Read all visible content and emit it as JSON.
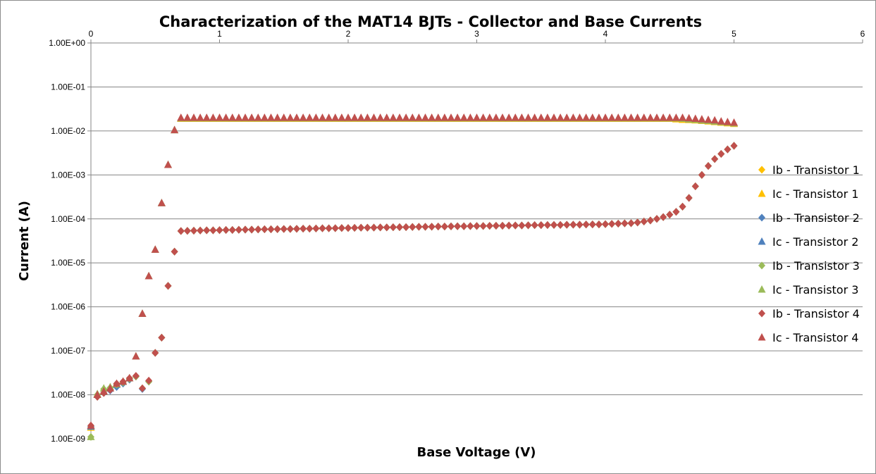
{
  "chart_data": {
    "type": "scatter",
    "title": "Characterization of the MAT14 BJTs - Collector and Base Currents",
    "xlabel": "Base Voltage (V)",
    "ylabel": "Current (A)",
    "xlim": [
      0,
      6
    ],
    "ylim": [
      1e-09,
      1
    ],
    "yscale": "log",
    "grid": "horizontal major gridlines",
    "legend_position": "right",
    "x_ticks": [
      "0",
      "1",
      "2",
      "3",
      "4",
      "5",
      "6"
    ],
    "y_ticks": [
      "1.00E-09",
      "1.00E-08",
      "1.00E-07",
      "1.00E-06",
      "1.00E-05",
      "1.00E-04",
      "1.00E-03",
      "1.00E-02",
      "1.00E-01",
      "1.00E+00"
    ],
    "x": [
      0.0,
      0.05,
      0.1,
      0.15,
      0.2,
      0.25,
      0.3,
      0.35,
      0.4,
      0.45,
      0.5,
      0.55,
      0.6,
      0.65,
      0.7,
      0.75,
      0.8,
      0.85,
      0.9,
      0.95,
      1.0,
      1.05,
      1.1,
      1.15,
      1.2,
      1.25,
      1.3,
      1.35,
      1.4,
      1.45,
      1.5,
      1.55,
      1.6,
      1.65,
      1.7,
      1.75,
      1.8,
      1.85,
      1.9,
      1.95,
      2.0,
      2.05,
      2.1,
      2.15,
      2.2,
      2.25,
      2.3,
      2.35,
      2.4,
      2.45,
      2.5,
      2.55,
      2.6,
      2.65,
      2.7,
      2.75,
      2.8,
      2.85,
      2.9,
      2.95,
      3.0,
      3.05,
      3.1,
      3.15,
      3.2,
      3.25,
      3.3,
      3.35,
      3.4,
      3.45,
      3.5,
      3.55,
      3.6,
      3.65,
      3.7,
      3.75,
      3.8,
      3.85,
      3.9,
      3.95,
      4.0,
      4.05,
      4.1,
      4.15,
      4.2,
      4.25,
      4.3,
      4.35,
      4.4,
      4.45,
      4.5,
      4.55,
      4.6,
      4.65,
      4.7,
      4.75,
      4.8,
      4.85,
      4.9,
      4.95,
      5.0
    ],
    "series": [
      {
        "name": "Ib - Transistor 1",
        "marker": "diamond",
        "color": "#ffc000",
        "values": [
          1.8e-09,
          9e-09,
          1.1e-08,
          1.3e-08,
          1.6e-08,
          1.9e-08,
          2.3e-08,
          2.6e-08,
          1.4e-08,
          2e-08,
          9e-08,
          2e-07,
          3e-06,
          1.8e-05,
          5.3e-05,
          5.35e-05,
          5.4e-05,
          5.45e-05,
          5.5e-05,
          5.5e-05,
          5.55e-05,
          5.6e-05,
          5.6e-05,
          5.65e-05,
          5.7e-05,
          5.7e-05,
          5.75e-05,
          5.8e-05,
          5.8e-05,
          5.85e-05,
          5.9e-05,
          5.9e-05,
          5.95e-05,
          6e-05,
          6e-05,
          6.05e-05,
          6.1e-05,
          6.1e-05,
          6.15e-05,
          6.2e-05,
          6.2e-05,
          6.25e-05,
          6.3e-05,
          6.3e-05,
          6.35e-05,
          6.4e-05,
          6.4e-05,
          6.45e-05,
          6.5e-05,
          6.5e-05,
          6.55e-05,
          6.6e-05,
          6.6e-05,
          6.65e-05,
          6.7e-05,
          6.7e-05,
          6.75e-05,
          6.8e-05,
          6.8e-05,
          6.85e-05,
          6.9e-05,
          6.9e-05,
          6.95e-05,
          7e-05,
          7e-05,
          7.05e-05,
          7.1e-05,
          7.1e-05,
          7.15e-05,
          7.2e-05,
          7.2e-05,
          7.25e-05,
          7.3e-05,
          7.3e-05,
          7.35e-05,
          7.4e-05,
          7.4e-05,
          7.45e-05,
          7.5e-05,
          7.5e-05,
          7.6e-05,
          7.7e-05,
          7.8e-05,
          7.9e-05,
          8e-05,
          8.3e-05,
          8.7e-05,
          9.2e-05,
          0.0001,
          0.00011,
          0.000125,
          0.000145,
          0.00019,
          0.0003,
          0.00055,
          0.001,
          0.0016,
          0.0023,
          0.003,
          0.0038,
          0.0046
        ]
      },
      {
        "name": "Ic - Transistor 1",
        "marker": "triangle",
        "color": "#ffc000",
        "values": [
          1.8e-09,
          1e-08,
          1.2e-08,
          1.4e-08,
          1.7e-08,
          2e-08,
          2.4e-08,
          7.5e-08,
          7e-07,
          5e-06,
          2e-05,
          0.00023,
          0.0017,
          0.0105,
          0.019,
          0.019,
          0.019,
          0.019,
          0.019,
          0.019,
          0.019,
          0.019,
          0.019,
          0.019,
          0.019,
          0.019,
          0.019,
          0.019,
          0.019,
          0.019,
          0.019,
          0.019,
          0.019,
          0.019,
          0.019,
          0.019,
          0.019,
          0.019,
          0.019,
          0.019,
          0.019,
          0.019,
          0.019,
          0.019,
          0.019,
          0.019,
          0.019,
          0.019,
          0.019,
          0.019,
          0.019,
          0.019,
          0.019,
          0.019,
          0.019,
          0.019,
          0.019,
          0.019,
          0.019,
          0.019,
          0.019,
          0.019,
          0.019,
          0.019,
          0.019,
          0.019,
          0.019,
          0.019,
          0.019,
          0.019,
          0.019,
          0.019,
          0.019,
          0.019,
          0.019,
          0.019,
          0.019,
          0.019,
          0.019,
          0.019,
          0.019,
          0.019,
          0.019,
          0.019,
          0.019,
          0.019,
          0.019,
          0.019,
          0.019,
          0.019,
          0.019,
          0.0185,
          0.018,
          0.0178,
          0.0175,
          0.017,
          0.0165,
          0.016,
          0.0155,
          0.015,
          0.0145
        ]
      },
      {
        "name": "Ib - Transistor 2",
        "marker": "diamond",
        "color": "#4f81bd",
        "values": [
          1.9e-09,
          9e-09,
          1.1e-08,
          1.25e-08,
          1.5e-08,
          1.8e-08,
          2.2e-08,
          2.6e-08,
          1.35e-08,
          2e-08,
          9e-08,
          2e-07,
          3e-06,
          1.8e-05,
          5.3e-05,
          5.35e-05,
          5.4e-05,
          5.45e-05,
          5.5e-05,
          5.5e-05,
          5.55e-05,
          5.6e-05,
          5.6e-05,
          5.65e-05,
          5.7e-05,
          5.7e-05,
          5.75e-05,
          5.8e-05,
          5.8e-05,
          5.85e-05,
          5.9e-05,
          5.9e-05,
          5.95e-05,
          6e-05,
          6e-05,
          6.05e-05,
          6.1e-05,
          6.1e-05,
          6.15e-05,
          6.2e-05,
          6.2e-05,
          6.25e-05,
          6.3e-05,
          6.3e-05,
          6.35e-05,
          6.4e-05,
          6.4e-05,
          6.45e-05,
          6.5e-05,
          6.5e-05,
          6.55e-05,
          6.6e-05,
          6.6e-05,
          6.65e-05,
          6.7e-05,
          6.7e-05,
          6.75e-05,
          6.8e-05,
          6.8e-05,
          6.85e-05,
          6.9e-05,
          6.9e-05,
          6.95e-05,
          7e-05,
          7e-05,
          7.05e-05,
          7.1e-05,
          7.1e-05,
          7.15e-05,
          7.2e-05,
          7.2e-05,
          7.25e-05,
          7.3e-05,
          7.3e-05,
          7.35e-05,
          7.4e-05,
          7.4e-05,
          7.45e-05,
          7.5e-05,
          7.5e-05,
          7.6e-05,
          7.7e-05,
          7.8e-05,
          7.9e-05,
          8e-05,
          8.3e-05,
          8.7e-05,
          9.2e-05,
          0.0001,
          0.00011,
          0.000125,
          0.000145,
          0.00019,
          0.0003,
          0.00055,
          0.001,
          0.0016,
          0.0023,
          0.003,
          0.0038,
          0.0046
        ]
      },
      {
        "name": "Ic - Transistor 2",
        "marker": "triangle",
        "color": "#4f81bd",
        "values": [
          1.9e-09,
          1e-08,
          1.2e-08,
          1.4e-08,
          1.7e-08,
          2e-08,
          2.4e-08,
          7.5e-08,
          7e-07,
          5e-06,
          2e-05,
          0.00023,
          0.0017,
          0.0105,
          0.0195,
          0.0195,
          0.0195,
          0.0195,
          0.0195,
          0.0195,
          0.0195,
          0.0195,
          0.0195,
          0.0195,
          0.0195,
          0.0195,
          0.0195,
          0.0195,
          0.0195,
          0.0195,
          0.0195,
          0.0195,
          0.0195,
          0.0195,
          0.0195,
          0.0195,
          0.0195,
          0.0195,
          0.0195,
          0.0195,
          0.0195,
          0.0195,
          0.0195,
          0.0195,
          0.0195,
          0.0195,
          0.0195,
          0.0195,
          0.0195,
          0.0195,
          0.0195,
          0.0195,
          0.0195,
          0.0195,
          0.0195,
          0.0195,
          0.0195,
          0.0195,
          0.0195,
          0.0195,
          0.0195,
          0.0195,
          0.0195,
          0.0195,
          0.0195,
          0.0195,
          0.0195,
          0.0195,
          0.0195,
          0.0195,
          0.0195,
          0.0195,
          0.0195,
          0.0195,
          0.0195,
          0.0195,
          0.0195,
          0.0195,
          0.0195,
          0.0195,
          0.0195,
          0.0195,
          0.0195,
          0.0195,
          0.0195,
          0.0195,
          0.0195,
          0.0195,
          0.0195,
          0.0195,
          0.0195,
          0.0195,
          0.019,
          0.0185,
          0.018,
          0.0175,
          0.017,
          0.0165,
          0.016,
          0.0155,
          0.015
        ]
      },
      {
        "name": "Ib - Transistor 3",
        "marker": "diamond",
        "color": "#9bbb59",
        "values": [
          1.1e-09,
          1e-08,
          1.35e-08,
          1.45e-08,
          1.7e-08,
          1.9e-08,
          2.3e-08,
          2.6e-08,
          1.4e-08,
          2e-08,
          9e-08,
          2e-07,
          3e-06,
          1.8e-05,
          5.3e-05,
          5.35e-05,
          5.4e-05,
          5.45e-05,
          5.5e-05,
          5.5e-05,
          5.55e-05,
          5.6e-05,
          5.6e-05,
          5.65e-05,
          5.7e-05,
          5.7e-05,
          5.75e-05,
          5.8e-05,
          5.8e-05,
          5.85e-05,
          5.9e-05,
          5.9e-05,
          5.95e-05,
          6e-05,
          6e-05,
          6.05e-05,
          6.1e-05,
          6.1e-05,
          6.15e-05,
          6.2e-05,
          6.2e-05,
          6.25e-05,
          6.3e-05,
          6.3e-05,
          6.35e-05,
          6.4e-05,
          6.4e-05,
          6.45e-05,
          6.5e-05,
          6.5e-05,
          6.55e-05,
          6.6e-05,
          6.6e-05,
          6.65e-05,
          6.7e-05,
          6.7e-05,
          6.75e-05,
          6.8e-05,
          6.8e-05,
          6.85e-05,
          6.9e-05,
          6.9e-05,
          6.95e-05,
          7e-05,
          7e-05,
          7.05e-05,
          7.1e-05,
          7.1e-05,
          7.15e-05,
          7.2e-05,
          7.2e-05,
          7.25e-05,
          7.3e-05,
          7.3e-05,
          7.35e-05,
          7.4e-05,
          7.4e-05,
          7.45e-05,
          7.5e-05,
          7.5e-05,
          7.6e-05,
          7.7e-05,
          7.8e-05,
          7.9e-05,
          8e-05,
          8.3e-05,
          8.7e-05,
          9.2e-05,
          0.0001,
          0.00011,
          0.000125,
          0.000145,
          0.00019,
          0.0003,
          0.00055,
          0.001,
          0.0016,
          0.0023,
          0.003,
          0.0038,
          0.0046
        ]
      },
      {
        "name": "Ic - Transistor 3",
        "marker": "triangle",
        "color": "#9bbb59",
        "values": [
          1.1e-09,
          1.05e-08,
          1.4e-08,
          1.5e-08,
          1.75e-08,
          2e-08,
          2.4e-08,
          7.5e-08,
          7e-07,
          5e-06,
          2e-05,
          0.00023,
          0.0017,
          0.0105,
          0.0195,
          0.0195,
          0.0195,
          0.0195,
          0.0195,
          0.0195,
          0.0195,
          0.0195,
          0.0195,
          0.0195,
          0.0195,
          0.0195,
          0.0195,
          0.0195,
          0.0195,
          0.0195,
          0.0195,
          0.0195,
          0.0195,
          0.0195,
          0.0195,
          0.0195,
          0.0195,
          0.0195,
          0.0195,
          0.0195,
          0.0195,
          0.0195,
          0.0195,
          0.0195,
          0.0195,
          0.0195,
          0.0195,
          0.0195,
          0.0195,
          0.0195,
          0.0195,
          0.0195,
          0.0195,
          0.0195,
          0.0195,
          0.0195,
          0.0195,
          0.0195,
          0.0195,
          0.0195,
          0.0195,
          0.0195,
          0.0195,
          0.0195,
          0.0195,
          0.0195,
          0.0195,
          0.0195,
          0.0195,
          0.0195,
          0.0195,
          0.0195,
          0.0195,
          0.0195,
          0.0195,
          0.0195,
          0.0195,
          0.0195,
          0.0195,
          0.0195,
          0.0195,
          0.0195,
          0.0195,
          0.0195,
          0.0195,
          0.0195,
          0.0195,
          0.0195,
          0.0195,
          0.0195,
          0.0195,
          0.0195,
          0.019,
          0.0185,
          0.018,
          0.0175,
          0.017,
          0.0165,
          0.016,
          0.0155,
          0.015
        ]
      },
      {
        "name": "Ib - Transistor 4",
        "marker": "diamond",
        "color": "#c0504d",
        "values": [
          2e-09,
          9e-09,
          1.1e-08,
          1.3e-08,
          1.8e-08,
          2e-08,
          2.4e-08,
          2.7e-08,
          1.4e-08,
          2.1e-08,
          9e-08,
          2e-07,
          3e-06,
          1.8e-05,
          5.3e-05,
          5.35e-05,
          5.4e-05,
          5.45e-05,
          5.5e-05,
          5.5e-05,
          5.55e-05,
          5.6e-05,
          5.6e-05,
          5.65e-05,
          5.7e-05,
          5.7e-05,
          5.75e-05,
          5.8e-05,
          5.8e-05,
          5.85e-05,
          5.9e-05,
          5.9e-05,
          5.95e-05,
          6e-05,
          6e-05,
          6.05e-05,
          6.1e-05,
          6.1e-05,
          6.15e-05,
          6.2e-05,
          6.2e-05,
          6.25e-05,
          6.3e-05,
          6.3e-05,
          6.35e-05,
          6.4e-05,
          6.4e-05,
          6.45e-05,
          6.5e-05,
          6.5e-05,
          6.55e-05,
          6.6e-05,
          6.6e-05,
          6.65e-05,
          6.7e-05,
          6.7e-05,
          6.75e-05,
          6.8e-05,
          6.8e-05,
          6.85e-05,
          6.9e-05,
          6.9e-05,
          6.95e-05,
          7e-05,
          7e-05,
          7.05e-05,
          7.1e-05,
          7.1e-05,
          7.15e-05,
          7.2e-05,
          7.2e-05,
          7.25e-05,
          7.3e-05,
          7.3e-05,
          7.35e-05,
          7.4e-05,
          7.4e-05,
          7.45e-05,
          7.5e-05,
          7.5e-05,
          7.6e-05,
          7.7e-05,
          7.8e-05,
          7.9e-05,
          8e-05,
          8.3e-05,
          8.7e-05,
          9.2e-05,
          0.0001,
          0.00011,
          0.000125,
          0.000145,
          0.00019,
          0.0003,
          0.00055,
          0.001,
          0.0016,
          0.0023,
          0.003,
          0.0038,
          0.0046
        ]
      },
      {
        "name": "Ic - Transistor 4",
        "marker": "triangle",
        "color": "#c0504d",
        "values": [
          2e-09,
          1e-08,
          1.2e-08,
          1.4e-08,
          1.8e-08,
          2e-08,
          2.4e-08,
          7.5e-08,
          7e-07,
          5e-06,
          2e-05,
          0.00023,
          0.0017,
          0.0105,
          0.02,
          0.02,
          0.02,
          0.02,
          0.02,
          0.02,
          0.02,
          0.02,
          0.02,
          0.02,
          0.02,
          0.02,
          0.02,
          0.02,
          0.02,
          0.02,
          0.02,
          0.02,
          0.02,
          0.02,
          0.02,
          0.02,
          0.02,
          0.02,
          0.02,
          0.02,
          0.02,
          0.02,
          0.02,
          0.02,
          0.02,
          0.02,
          0.02,
          0.02,
          0.02,
          0.02,
          0.02,
          0.02,
          0.02,
          0.02,
          0.02,
          0.02,
          0.02,
          0.02,
          0.02,
          0.02,
          0.02,
          0.02,
          0.02,
          0.02,
          0.02,
          0.02,
          0.02,
          0.02,
          0.02,
          0.02,
          0.02,
          0.02,
          0.02,
          0.02,
          0.02,
          0.02,
          0.02,
          0.02,
          0.02,
          0.02,
          0.02,
          0.02,
          0.02,
          0.02,
          0.02,
          0.02,
          0.02,
          0.02,
          0.02,
          0.02,
          0.02,
          0.02,
          0.02,
          0.0195,
          0.019,
          0.0185,
          0.018,
          0.0175,
          0.0165,
          0.016,
          0.0155
        ]
      }
    ]
  }
}
